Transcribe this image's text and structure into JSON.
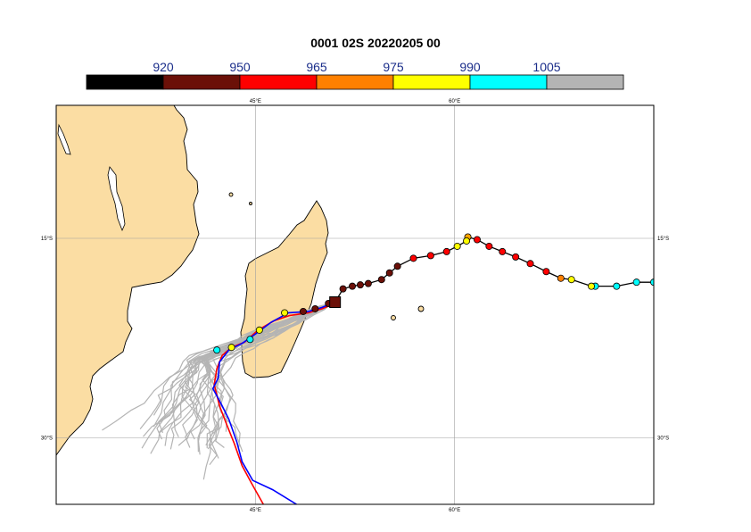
{
  "title": "0001 02S 20220205 00",
  "colorbar": {
    "segments": [
      {
        "color": "#000000"
      },
      {
        "color": "#6b1008"
      },
      {
        "color": "#ff0000"
      },
      {
        "color": "#ff8000"
      },
      {
        "color": "#ffff00"
      },
      {
        "color": "#00ffff"
      },
      {
        "color": "#b4b4b4"
      }
    ],
    "labels": [
      "920",
      "950",
      "965",
      "975",
      "990",
      "1005"
    ]
  },
  "map": {
    "lon_range": [
      30,
      75
    ],
    "lat_range": [
      -35,
      -5
    ],
    "land_color": "#fbdda3",
    "grid_color": "#a0a0a0",
    "lon_labels": [
      "45°E",
      "60°E"
    ],
    "lat_labels": [
      "15°S",
      "30°S"
    ],
    "lon_ticks": [
      45,
      60
    ],
    "lat_ticks": [
      -15,
      -30
    ]
  },
  "storm": {
    "name": "02S",
    "current_position": {
      "lon": 51.0,
      "lat": -19.8
    },
    "observed_track": [
      {
        "lon": 75.0,
        "lat": -18.3,
        "color": "#00ffff"
      },
      {
        "lon": 73.7,
        "lat": -18.3,
        "color": "#00ffff"
      },
      {
        "lon": 72.2,
        "lat": -18.6,
        "color": "#00ffff"
      },
      {
        "lon": 70.6,
        "lat": -18.6,
        "color": "#00ffff"
      },
      {
        "lon": 70.3,
        "lat": -18.6,
        "color": "#ffff00"
      },
      {
        "lon": 68.8,
        "lat": -18.1,
        "color": "#ffff00"
      },
      {
        "lon": 68.0,
        "lat": -18.0,
        "color": "#ff8000"
      },
      {
        "lon": 66.9,
        "lat": -17.5,
        "color": "#ff0000"
      },
      {
        "lon": 65.7,
        "lat": -16.9,
        "color": "#ff0000"
      },
      {
        "lon": 64.6,
        "lat": -16.4,
        "color": "#ff0000"
      },
      {
        "lon": 63.6,
        "lat": -16.0,
        "color": "#ff0000"
      },
      {
        "lon": 62.6,
        "lat": -15.6,
        "color": "#ff0000"
      },
      {
        "lon": 61.7,
        "lat": -15.1,
        "color": "#ff0000"
      },
      {
        "lon": 61.0,
        "lat": -14.9,
        "color": "#ffa500"
      },
      {
        "lon": 60.9,
        "lat": -15.2,
        "color": "#ffff00"
      },
      {
        "lon": 60.2,
        "lat": -15.6,
        "color": "#ffff00"
      },
      {
        "lon": 59.4,
        "lat": -16.0,
        "color": "#ff0000"
      },
      {
        "lon": 58.2,
        "lat": -16.3,
        "color": "#ff0000"
      },
      {
        "lon": 56.9,
        "lat": -16.5,
        "color": "#ff0000"
      },
      {
        "lon": 55.7,
        "lat": -17.1,
        "color": "#6b1008"
      },
      {
        "lon": 55.1,
        "lat": -17.6,
        "color": "#6b1008"
      },
      {
        "lon": 54.5,
        "lat": -18.1,
        "color": "#6b1008"
      },
      {
        "lon": 53.5,
        "lat": -18.4,
        "color": "#6b1008"
      },
      {
        "lon": 52.9,
        "lat": -18.5,
        "color": "#6b1008"
      },
      {
        "lon": 52.3,
        "lat": -18.6,
        "color": "#6b1008"
      },
      {
        "lon": 51.6,
        "lat": -18.8,
        "color": "#6b1008"
      },
      {
        "lon": 51.0,
        "lat": -19.8,
        "color": "#6b1008"
      }
    ],
    "forecast_points": [
      {
        "lon": 50.5,
        "lat": -19.9,
        "color": "#6b1008"
      },
      {
        "lon": 49.5,
        "lat": -20.3,
        "color": "#6b1008"
      },
      {
        "lon": 48.6,
        "lat": -20.5,
        "color": "#6b1008"
      },
      {
        "lon": 47.2,
        "lat": -20.6,
        "color": "#ffff00"
      },
      {
        "lon": 45.3,
        "lat": -21.9,
        "color": "#ffff00"
      },
      {
        "lon": 44.6,
        "lat": -22.6,
        "color": "#00ffff"
      },
      {
        "lon": 43.2,
        "lat": -23.2,
        "color": "#ffff00"
      },
      {
        "lon": 42.1,
        "lat": -23.4,
        "color": "#00ffff"
      }
    ],
    "red_forecast": [
      [
        51.0,
        -19.9
      ],
      [
        50.0,
        -20.3
      ],
      [
        49.0,
        -20.6
      ],
      [
        47.6,
        -20.8
      ],
      [
        46.4,
        -21.2
      ],
      [
        45.2,
        -21.9
      ],
      [
        44.2,
        -22.8
      ],
      [
        43.2,
        -23.2
      ],
      [
        42.5,
        -23.8
      ],
      [
        42.1,
        -24.8
      ],
      [
        41.9,
        -26.0
      ],
      [
        42.3,
        -27.6
      ],
      [
        42.8,
        -28.9
      ],
      [
        43.4,
        -30.4
      ],
      [
        44.0,
        -32.1
      ],
      [
        44.7,
        -33.4
      ],
      [
        45.6,
        -35.0
      ]
    ],
    "blue_forecast": [
      [
        51.0,
        -19.8
      ],
      [
        50.0,
        -20.2
      ],
      [
        49.0,
        -20.5
      ],
      [
        47.5,
        -20.6
      ],
      [
        46.2,
        -21.3
      ],
      [
        45.0,
        -22.2
      ],
      [
        44.0,
        -22.9
      ],
      [
        43.0,
        -23.4
      ],
      [
        42.3,
        -24.3
      ],
      [
        42.2,
        -25.5
      ],
      [
        41.8,
        -26.3
      ],
      [
        42.4,
        -27.4
      ],
      [
        43.0,
        -28.6
      ],
      [
        43.6,
        -30.3
      ],
      [
        44.0,
        -31.8
      ],
      [
        44.8,
        -33.2
      ],
      [
        46.3,
        -33.9
      ],
      [
        48.1,
        -35.0
      ]
    ]
  }
}
